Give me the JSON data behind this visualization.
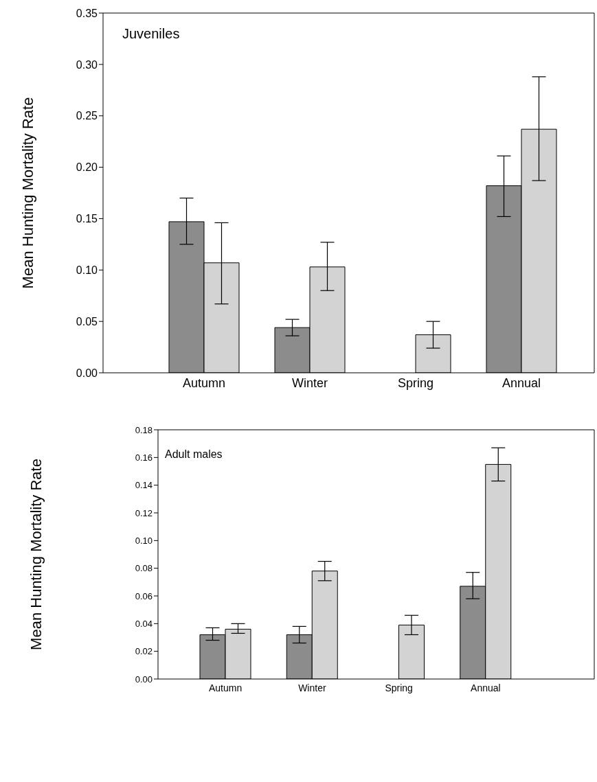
{
  "chart_data": [
    {
      "type": "bar",
      "title": "Juveniles",
      "ylabel": "Mean Hunting Mortality Rate",
      "categories": [
        "Autumn",
        "Winter",
        "Spring",
        "Annual"
      ],
      "series": [
        {
          "color": "#8c8c8c",
          "values": [
            0.147,
            0.044,
            null,
            0.182
          ],
          "errors": [
            [
              0.125,
              0.17
            ],
            [
              0.036,
              0.052
            ],
            null,
            [
              0.152,
              0.211
            ]
          ]
        },
        {
          "color": "#d3d3d3",
          "values": [
            0.107,
            0.103,
            0.037,
            0.237
          ],
          "errors": [
            [
              0.067,
              0.146
            ],
            [
              0.08,
              0.127
            ],
            [
              0.024,
              0.05
            ],
            [
              0.187,
              0.288
            ]
          ]
        }
      ],
      "ylim": [
        0,
        0.35
      ],
      "yticks": [
        {
          "value": 0,
          "label": "0.00"
        },
        {
          "value": 0.05,
          "label": "0.05"
        },
        {
          "value": 0.1,
          "label": "0.10"
        },
        {
          "value": 0.15,
          "label": "0.15"
        },
        {
          "value": 0.2,
          "label": "0.20"
        },
        {
          "value": 0.25,
          "label": "0.25"
        },
        {
          "value": 0.3,
          "label": "0.30"
        },
        {
          "value": 0.35,
          "label": "0.35"
        }
      ]
    },
    {
      "type": "bar",
      "title": "Adult males",
      "ylabel": "Mean Hunting Mortality Rate",
      "categories": [
        "Autumn",
        "Winter",
        "Spring",
        "Annual"
      ],
      "series": [
        {
          "color": "#8c8c8c",
          "values": [
            0.032,
            0.032,
            null,
            0.067
          ],
          "errors": [
            [
              0.028,
              0.037
            ],
            [
              0.026,
              0.038
            ],
            null,
            [
              0.058,
              0.077
            ]
          ]
        },
        {
          "color": "#d3d3d3",
          "values": [
            0.036,
            0.078,
            0.039,
            0.155
          ],
          "errors": [
            [
              0.033,
              0.04
            ],
            [
              0.071,
              0.085
            ],
            [
              0.032,
              0.046
            ],
            [
              0.143,
              0.167
            ]
          ]
        }
      ],
      "ylim": [
        0,
        0.18
      ],
      "yticks": [
        {
          "value": 0,
          "label": "0.00"
        },
        {
          "value": 0.02,
          "label": "0.02"
        },
        {
          "value": 0.04,
          "label": "0.04"
        },
        {
          "value": 0.06,
          "label": "0.06"
        },
        {
          "value": 0.08,
          "label": "0.08"
        },
        {
          "value": 0.1,
          "label": "0.10"
        },
        {
          "value": 0.12,
          "label": "0.12"
        },
        {
          "value": 0.14,
          "label": "0.14"
        },
        {
          "value": 0.16,
          "label": "0.16"
        },
        {
          "value": 0.18,
          "label": "0.18"
        }
      ]
    }
  ]
}
